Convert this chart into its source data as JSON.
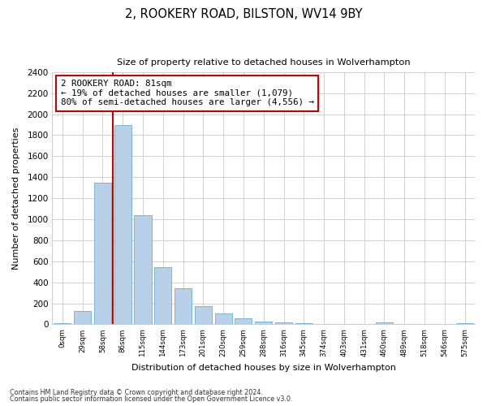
{
  "title1": "2, ROOKERY ROAD, BILSTON, WV14 9BY",
  "title2": "Size of property relative to detached houses in Wolverhampton",
  "xlabel": "Distribution of detached houses by size in Wolverhampton",
  "ylabel": "Number of detached properties",
  "categories": [
    "0sqm",
    "29sqm",
    "58sqm",
    "86sqm",
    "115sqm",
    "144sqm",
    "173sqm",
    "201sqm",
    "230sqm",
    "259sqm",
    "288sqm",
    "316sqm",
    "345sqm",
    "374sqm",
    "403sqm",
    "431sqm",
    "460sqm",
    "489sqm",
    "518sqm",
    "546sqm",
    "575sqm"
  ],
  "values": [
    10,
    130,
    1350,
    1900,
    1040,
    545,
    345,
    170,
    105,
    60,
    30,
    20,
    10,
    5,
    3,
    0,
    20,
    0,
    0,
    0,
    10
  ],
  "bar_color": "#b8d0e8",
  "bar_edgecolor": "#6aaed6",
  "vline_color": "#cc0000",
  "annotation_text": "2 ROOKERY ROAD: 81sqm\n← 19% of detached houses are smaller (1,079)\n80% of semi-detached houses are larger (4,556) →",
  "annotation_box_color": "white",
  "annotation_box_edgecolor": "#cc0000",
  "ylim": [
    0,
    2400
  ],
  "yticks": [
    0,
    200,
    400,
    600,
    800,
    1000,
    1200,
    1400,
    1600,
    1800,
    2000,
    2200,
    2400
  ],
  "footer1": "Contains HM Land Registry data © Crown copyright and database right 2024.",
  "footer2": "Contains public sector information licensed under the Open Government Licence v3.0.",
  "bg_color": "#ffffff",
  "grid_color": "#d0d0d0"
}
